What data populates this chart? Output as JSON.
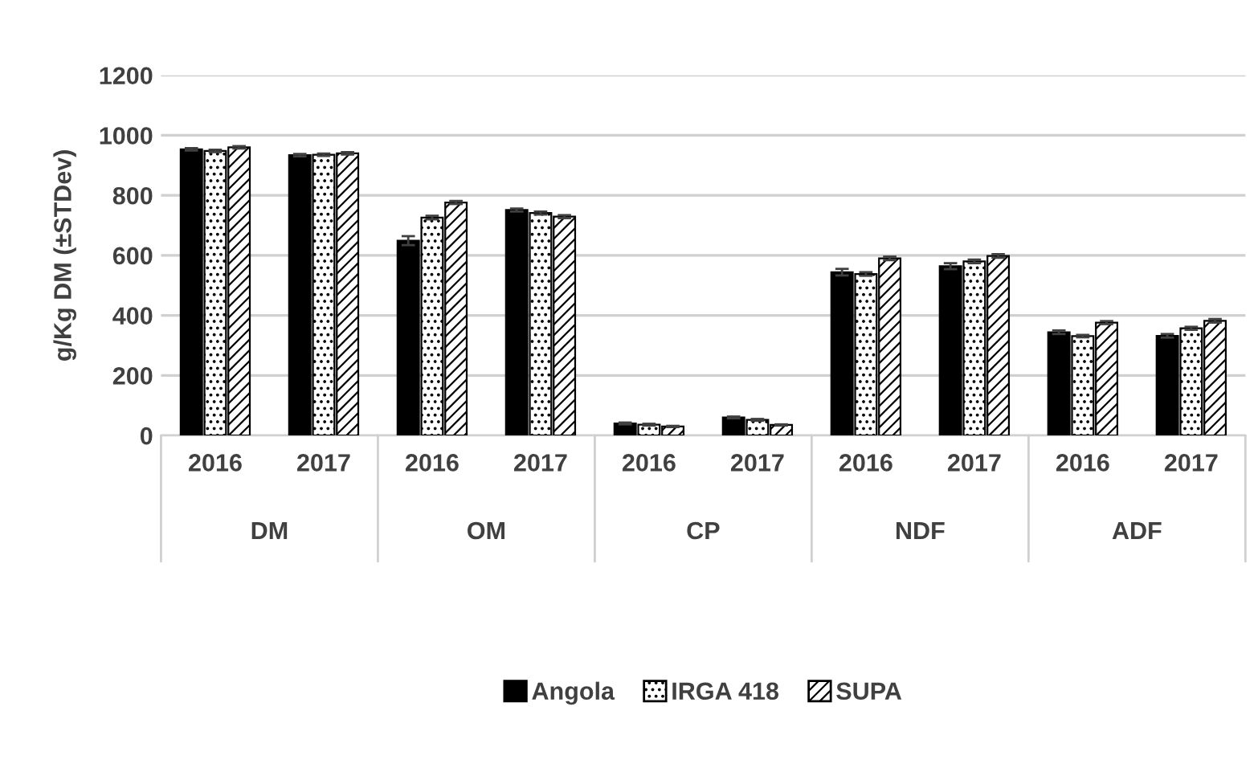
{
  "chart_data": {
    "type": "bar",
    "ylabel": "g/Kg DM (±STDev)",
    "categories": [
      "2016",
      "2017",
      "2016",
      "2017",
      "2016",
      "2017",
      "2016",
      "2017",
      "2016",
      "2017"
    ],
    "annotations": [
      "DM",
      "OM",
      "CP",
      "NDF",
      "ADF"
    ],
    "series": [
      {
        "name": "Angola",
        "color": "#000000",
        "values": [
          953,
          934,
          649,
          751,
          40,
          60,
          544,
          564,
          344,
          332
        ],
        "errors": [
          4,
          4,
          15,
          5,
          3,
          3,
          11,
          10,
          6,
          6
        ]
      },
      {
        "name": "IRGA 418",
        "color": "#000000",
        "values": [
          948,
          935,
          726,
          741,
          36,
          52,
          538,
          580,
          331,
          357
        ],
        "errors": [
          4,
          4,
          6,
          5,
          3,
          3,
          6,
          6,
          4,
          5
        ]
      },
      {
        "name": "SUPA",
        "color": "#000000",
        "values": [
          960,
          940,
          776,
          729,
          30,
          35,
          590,
          598,
          376,
          382
        ],
        "errors": [
          4,
          4,
          5,
          5,
          2,
          2,
          6,
          6,
          5,
          6
        ]
      }
    ],
    "ylim": [
      0,
      1200
    ],
    "yticks": [
      0,
      200,
      400,
      600,
      800,
      1000,
      1200
    ],
    "grid": "y",
    "legend": "bottom"
  }
}
